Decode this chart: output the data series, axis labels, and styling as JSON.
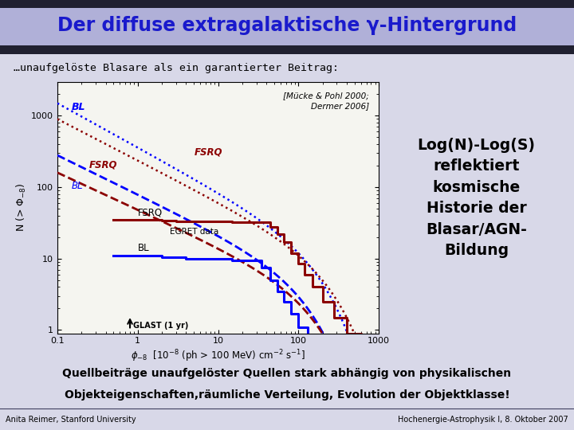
{
  "title": "Der diffuse extragalaktische γ-Hintergrund",
  "title_bg_top": "#9090c8",
  "title_bg_bot": "#b8b8e0",
  "subtitle": "…unaufgelöste Blasare als ein garantierter Beitrag:",
  "reference": "[Mücke & Pohl 2000;\nDermer 2006]",
  "right_text": "Log(N)-Log(S)\nreflektiert\nkosmische\nHistorie der\nBlasar/AGN-\nBildung",
  "bottom_text_line1": "Quellbeiträge unaufgelöster Quellen stark abhängig von physikalischen",
  "bottom_text_line2": "Objekteigenschaften,räumliche Verteilung, Evolution der Objektklasse!",
  "bottom_bg": "#ffff00",
  "footer_left": "Anita Reimer, Stanford University",
  "footer_right": "Hochenergie-Astrophysik I, 8. Oktober 2007",
  "ylabel": "N (> Φ-8)",
  "bg_color": "#ffffff",
  "slide_bg": "#e8e8f0",
  "plot_bg": "#f5f5f0"
}
